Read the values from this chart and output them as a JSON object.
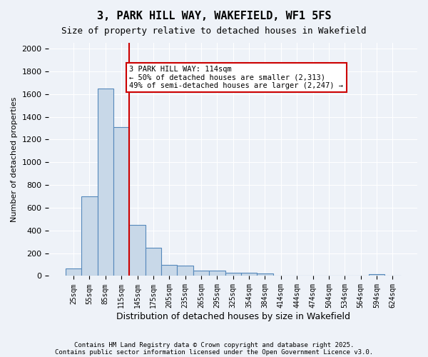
{
  "title": "3, PARK HILL WAY, WAKEFIELD, WF1 5FS",
  "subtitle": "Size of property relative to detached houses in Wakefield",
  "xlabel": "Distribution of detached houses by size in Wakefield",
  "ylabel": "Number of detached properties",
  "categories": [
    "25sqm",
    "55sqm",
    "85sqm",
    "115sqm",
    "145sqm",
    "175sqm",
    "205sqm",
    "235sqm",
    "265sqm",
    "295sqm",
    "325sqm",
    "354sqm",
    "384sqm",
    "414sqm",
    "444sqm",
    "474sqm",
    "504sqm",
    "534sqm",
    "564sqm",
    "594sqm",
    "624sqm"
  ],
  "values": [
    65,
    700,
    1650,
    1310,
    450,
    250,
    95,
    90,
    50,
    50,
    30,
    25,
    20,
    5,
    5,
    5,
    0,
    0,
    0,
    15,
    0
  ],
  "bar_color": "#c8d8e8",
  "bar_edge_color": "#5588bb",
  "bar_edge_width": 0.8,
  "red_line_x": 3.5,
  "annotation_text": "3 PARK HILL WAY: 114sqm\n← 50% of detached houses are smaller (2,313)\n49% of semi-detached houses are larger (2,247) →",
  "annotation_box_color": "#ffffff",
  "annotation_box_edge_color": "#cc0000",
  "ylim": [
    0,
    2050
  ],
  "yticks": [
    0,
    200,
    400,
    600,
    800,
    1000,
    1200,
    1400,
    1600,
    1800,
    2000
  ],
  "background_color": "#eef2f8",
  "grid_color": "#ffffff",
  "footer_line1": "Contains HM Land Registry data © Crown copyright and database right 2025.",
  "footer_line2": "Contains public sector information licensed under the Open Government Licence v3.0."
}
